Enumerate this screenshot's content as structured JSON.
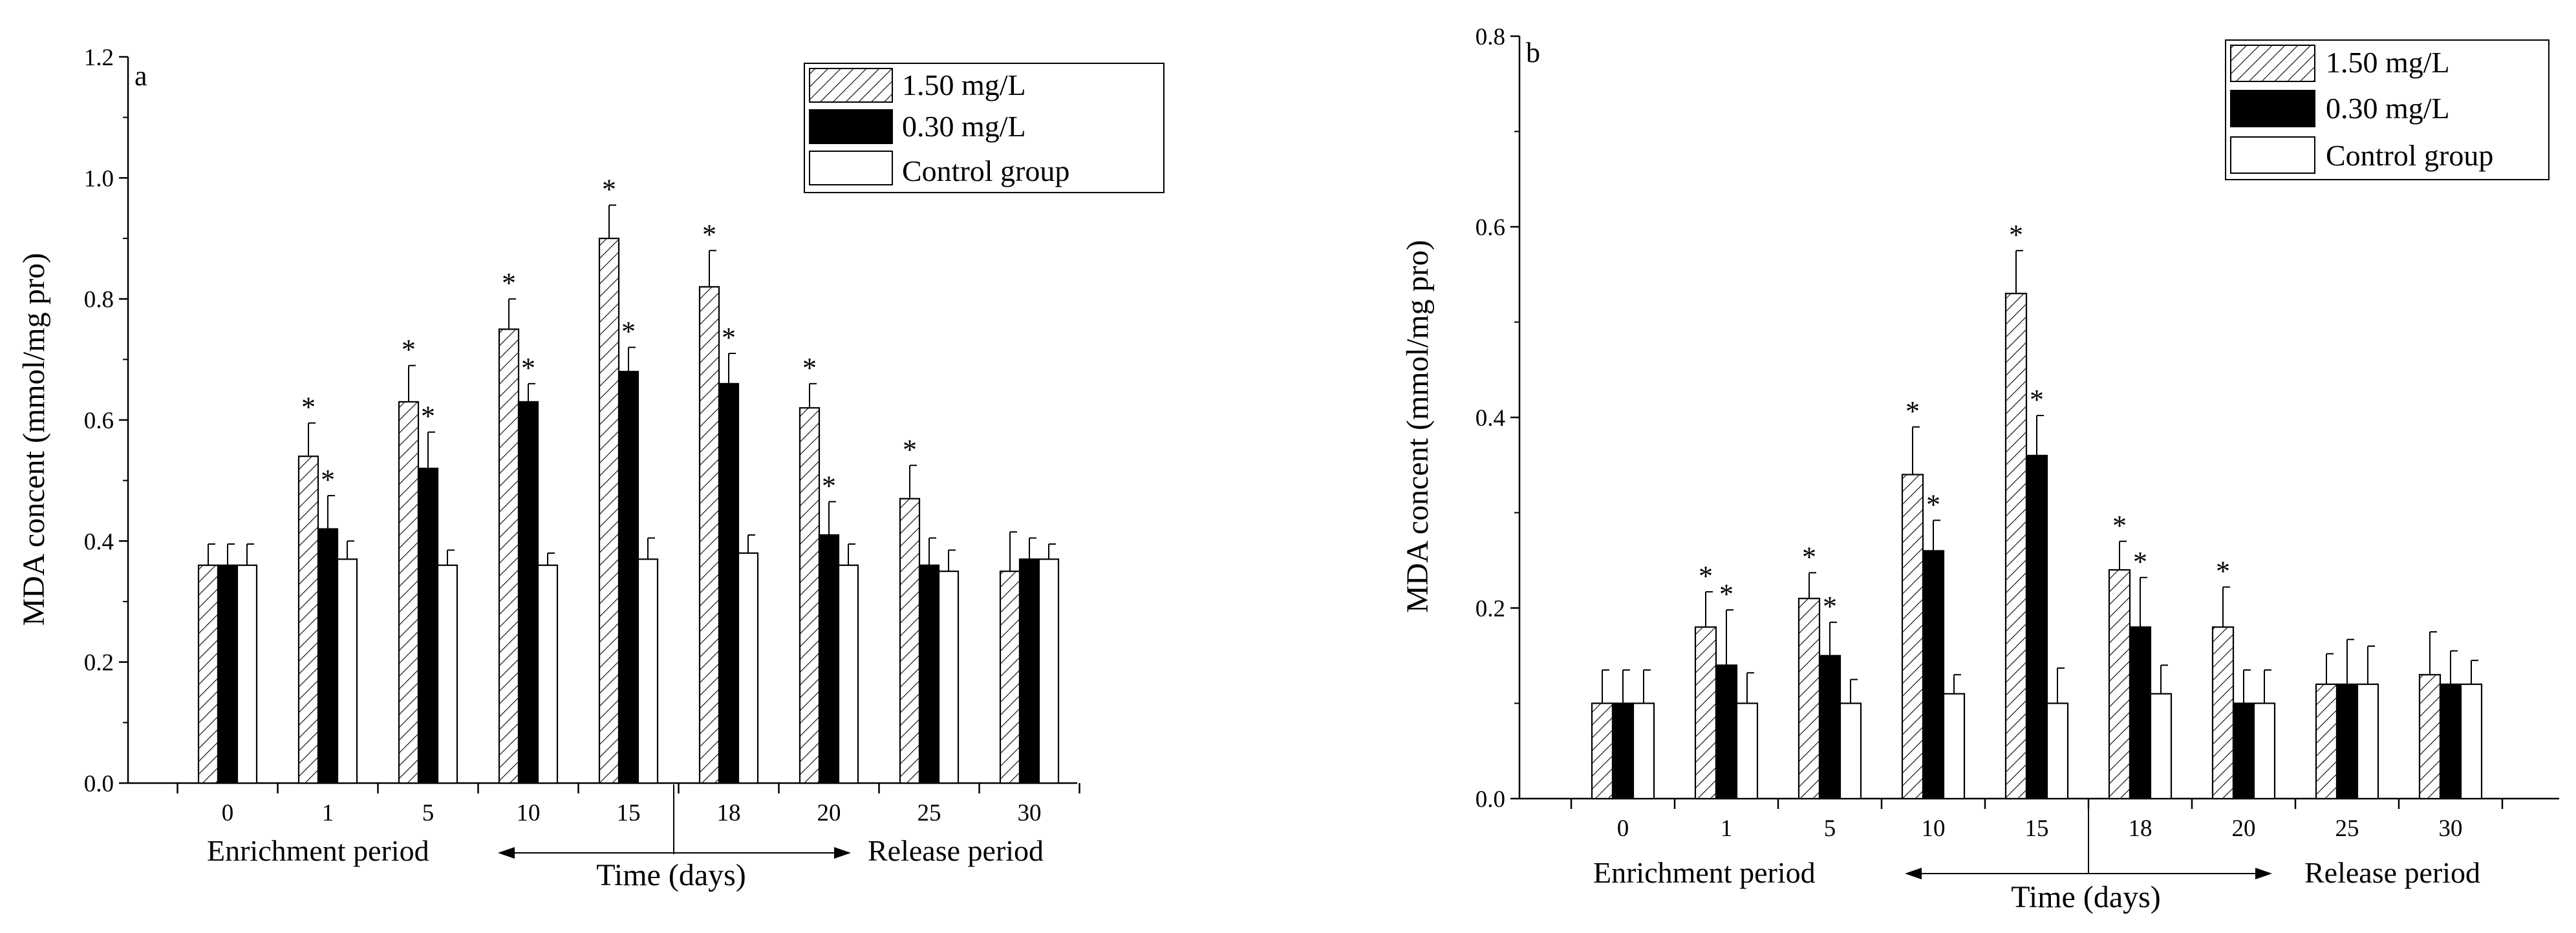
{
  "chart_data": [
    {
      "type": "bar",
      "panel_label": "a",
      "ylabel": "MDA concent (mmol/mg pro)",
      "xlabel": "Time (days)",
      "ylim": [
        0.0,
        1.2
      ],
      "yticks": [
        "0.0",
        "0.2",
        "0.4",
        "0.6",
        "0.8",
        "1.0",
        "1.2"
      ],
      "categories": [
        "0",
        "1",
        "5",
        "10",
        "15",
        "18",
        "20",
        "25",
        "30"
      ],
      "period_left": "Enrichment period",
      "period_right": "Release period",
      "legend_position": "top-right",
      "series": [
        {
          "name": "1.50 mg/L",
          "pattern": "hatch",
          "values": [
            0.36,
            0.54,
            0.63,
            0.75,
            0.9,
            0.82,
            0.62,
            0.47,
            0.35
          ],
          "errors": [
            0.035,
            0.055,
            0.06,
            0.05,
            0.055,
            0.06,
            0.04,
            0.055,
            0.065
          ],
          "significant": [
            false,
            true,
            true,
            true,
            true,
            true,
            true,
            true,
            false
          ]
        },
        {
          "name": "0.30 mg/L",
          "pattern": "solid",
          "values": [
            0.36,
            0.42,
            0.52,
            0.63,
            0.68,
            0.66,
            0.41,
            0.36,
            0.37
          ],
          "errors": [
            0.035,
            0.055,
            0.06,
            0.03,
            0.04,
            0.05,
            0.055,
            0.045,
            0.035
          ],
          "significant": [
            false,
            true,
            true,
            true,
            true,
            true,
            true,
            false,
            false
          ]
        },
        {
          "name": "Control group",
          "pattern": "open",
          "values": [
            0.36,
            0.37,
            0.36,
            0.36,
            0.37,
            0.38,
            0.36,
            0.35,
            0.37
          ],
          "errors": [
            0.035,
            0.03,
            0.025,
            0.02,
            0.035,
            0.03,
            0.035,
            0.035,
            0.025
          ],
          "significant": [
            false,
            false,
            false,
            false,
            false,
            false,
            false,
            false,
            false
          ]
        }
      ],
      "significance_marker": "*"
    },
    {
      "type": "bar",
      "panel_label": "b",
      "ylabel": "MDA concent (mmol/mg pro)",
      "xlabel": "Time (days)",
      "ylim": [
        0.0,
        0.8
      ],
      "yticks": [
        "0.0",
        "0.2",
        "0.4",
        "0.6",
        "0.8"
      ],
      "categories": [
        "0",
        "1",
        "5",
        "10",
        "15",
        "18",
        "20",
        "25",
        "30"
      ],
      "period_left": "Enrichment period",
      "period_right": "Release period",
      "legend_position": "top-right",
      "series": [
        {
          "name": "1.50 mg/L",
          "pattern": "hatch",
          "values": [
            0.1,
            0.18,
            0.21,
            0.34,
            0.53,
            0.24,
            0.18,
            0.12,
            0.13
          ],
          "errors": [
            0.035,
            0.037,
            0.027,
            0.05,
            0.045,
            0.03,
            0.042,
            0.032,
            0.045
          ],
          "significant": [
            false,
            true,
            true,
            true,
            true,
            true,
            true,
            false,
            false
          ]
        },
        {
          "name": "0.30 mg/L",
          "pattern": "solid",
          "values": [
            0.1,
            0.14,
            0.15,
            0.26,
            0.36,
            0.18,
            0.1,
            0.12,
            0.12
          ],
          "errors": [
            0.035,
            0.058,
            0.035,
            0.032,
            0.042,
            0.052,
            0.035,
            0.047,
            0.035
          ],
          "significant": [
            false,
            true,
            true,
            true,
            true,
            true,
            false,
            false,
            false
          ]
        },
        {
          "name": "Control group",
          "pattern": "open",
          "values": [
            0.1,
            0.1,
            0.1,
            0.11,
            0.1,
            0.11,
            0.1,
            0.12,
            0.12
          ],
          "errors": [
            0.035,
            0.032,
            0.025,
            0.02,
            0.037,
            0.03,
            0.035,
            0.04,
            0.025
          ],
          "significant": [
            false,
            false,
            false,
            false,
            false,
            false,
            false,
            false,
            false
          ]
        }
      ],
      "significance_marker": "*"
    }
  ]
}
